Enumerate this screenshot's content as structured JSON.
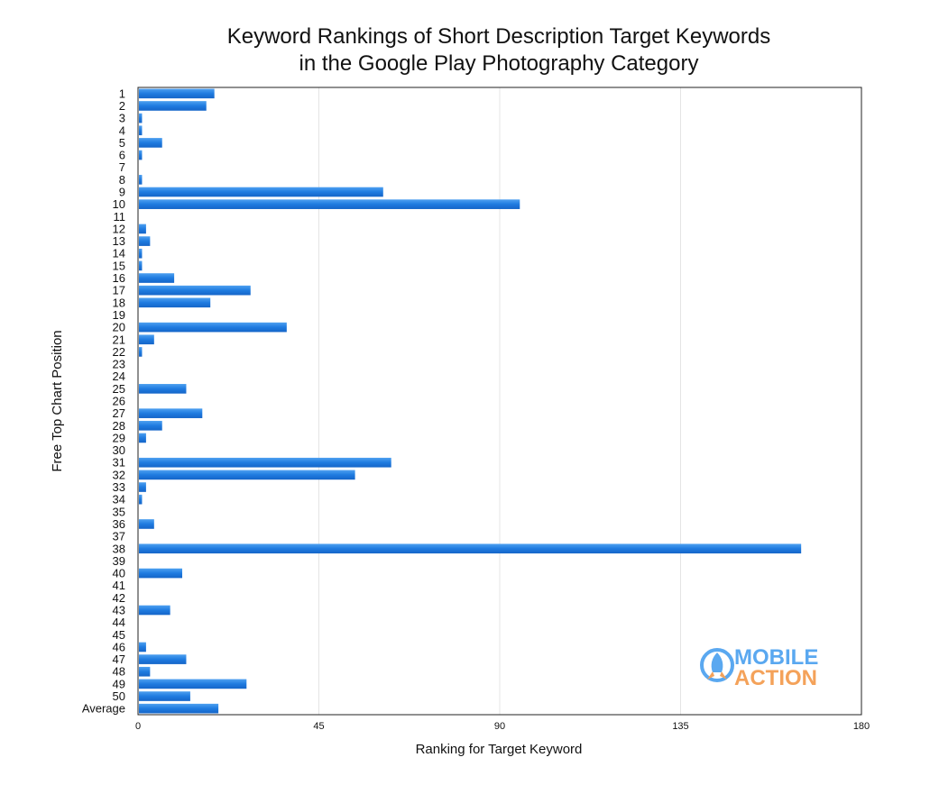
{
  "chart_data": {
    "type": "bar",
    "orientation": "horizontal",
    "title": [
      "Keyword Rankings of Short Description Target Keywords",
      "in the Google Play Photography Category"
    ],
    "xlabel": "Ranking for Target Keyword",
    "ylabel": "Free Top Chart Position",
    "xlim": [
      0,
      180
    ],
    "xticks": [
      0,
      45,
      90,
      135,
      180
    ],
    "grid": true,
    "categories": [
      "1",
      "2",
      "3",
      "4",
      "5",
      "6",
      "7",
      "8",
      "9",
      "10",
      "11",
      "12",
      "13",
      "14",
      "15",
      "16",
      "17",
      "18",
      "19",
      "20",
      "21",
      "22",
      "23",
      "24",
      "25",
      "26",
      "27",
      "28",
      "29",
      "30",
      "31",
      "32",
      "33",
      "34",
      "35",
      "36",
      "37",
      "38",
      "39",
      "40",
      "41",
      "42",
      "43",
      "44",
      "45",
      "46",
      "47",
      "48",
      "49",
      "50",
      "Average"
    ],
    "values": [
      19,
      17,
      1,
      1,
      6,
      1,
      0,
      1,
      61,
      95,
      0,
      2,
      3,
      1,
      1,
      9,
      28,
      18,
      0,
      37,
      4,
      1,
      0,
      0,
      12,
      0,
      16,
      6,
      2,
      0,
      63,
      54,
      2,
      1,
      0,
      4,
      0,
      165,
      0,
      11,
      0,
      0,
      8,
      0,
      0,
      2,
      12,
      3,
      27,
      13,
      20
    ],
    "bar_color": "#1f7be0"
  },
  "logo": {
    "line1": "MOBILE",
    "line2": "ACTION",
    "color1": "#5aa8f0",
    "color2": "#f4a25a"
  }
}
